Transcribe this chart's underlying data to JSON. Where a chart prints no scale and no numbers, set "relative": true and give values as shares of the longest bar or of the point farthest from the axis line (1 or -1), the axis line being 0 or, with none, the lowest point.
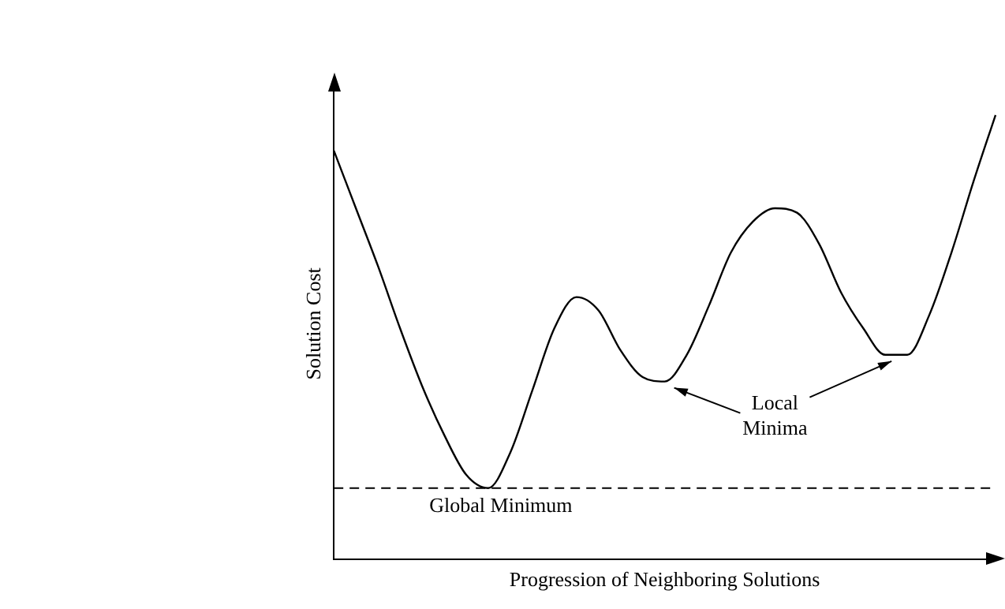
{
  "chart_data": {
    "type": "line",
    "relative": true,
    "xlabel": "Progression of Neighboring Solutions",
    "ylabel": "Solution Cost",
    "categories": [
      null,
      null,
      null,
      null,
      null,
      null,
      null,
      null,
      null,
      null,
      null,
      null,
      null,
      null,
      null,
      null,
      null,
      null,
      null,
      null,
      null,
      null,
      null,
      null,
      null,
      null,
      null,
      null,
      null,
      null,
      null
    ],
    "series": [
      {
        "color": "#000000",
        "values": [
          0.92,
          0.79,
          0.66,
          0.52,
          0.39,
          0.28,
          0.19,
          0.16,
          0.24,
          0.38,
          0.52,
          0.59,
          0.56,
          0.47,
          0.41,
          0.4,
          0.46,
          0.57,
          0.69,
          0.76,
          0.79,
          0.78,
          0.71,
          0.6,
          0.52,
          0.46,
          0.46,
          0.55,
          0.69,
          0.85,
          1
        ]
      }
    ],
    "ref_lines": [
      {
        "axis": "y",
        "value": 0.16,
        "label": "Global Minimum",
        "line_style": "dashed"
      }
    ],
    "annotations": [
      "Local Minima"
    ],
    "grid": false,
    "legend": false,
    "marker": "none",
    "line_style": "solid"
  }
}
